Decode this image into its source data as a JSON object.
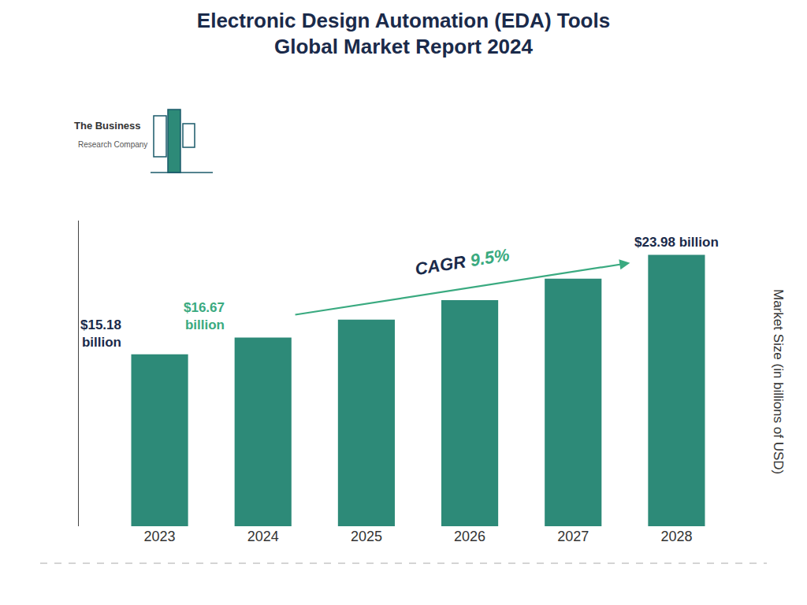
{
  "chart_data": {
    "type": "bar",
    "title": "Electronic Design Automation (EDA) Tools\nGlobal Market Report 2024",
    "title_color": "#1a2a4a",
    "categories": [
      "2023",
      "2024",
      "2025",
      "2026",
      "2027",
      "2028"
    ],
    "values": [
      15.18,
      16.67,
      18.25,
      19.98,
      21.87,
      23.98
    ],
    "color": "#2d8a78",
    "ylabel": "Market Size (in billions of USD)",
    "ylim": [
      0,
      27
    ],
    "grid": false,
    "tick_labels": "x",
    "annotations": [
      {
        "text": "$15.18\nbillion",
        "category": "2023",
        "color": "#1a2a4a"
      },
      {
        "text": "$16.67\nbillion",
        "category": "2024",
        "color": "#3aaa80"
      },
      {
        "text": "$23.98 billion",
        "category": "2028",
        "color": "#1a2a4a"
      }
    ],
    "cagr": {
      "parts": [
        {
          "text": "CAGR ",
          "color": "#1a2a4a"
        },
        {
          "text": "9.5%",
          "color": "#3aaa80"
        }
      ],
      "from": "2024",
      "to": "2028",
      "arrow_color": "#3aaa80"
    },
    "logo": {
      "texts": [
        "The Business",
        "Research Company"
      ],
      "outline_color": "#1a5a6a",
      "fill_color": "#2d8a78"
    },
    "bottom_line_color": "#aaaaaa",
    "background_color": "#ffffff"
  }
}
